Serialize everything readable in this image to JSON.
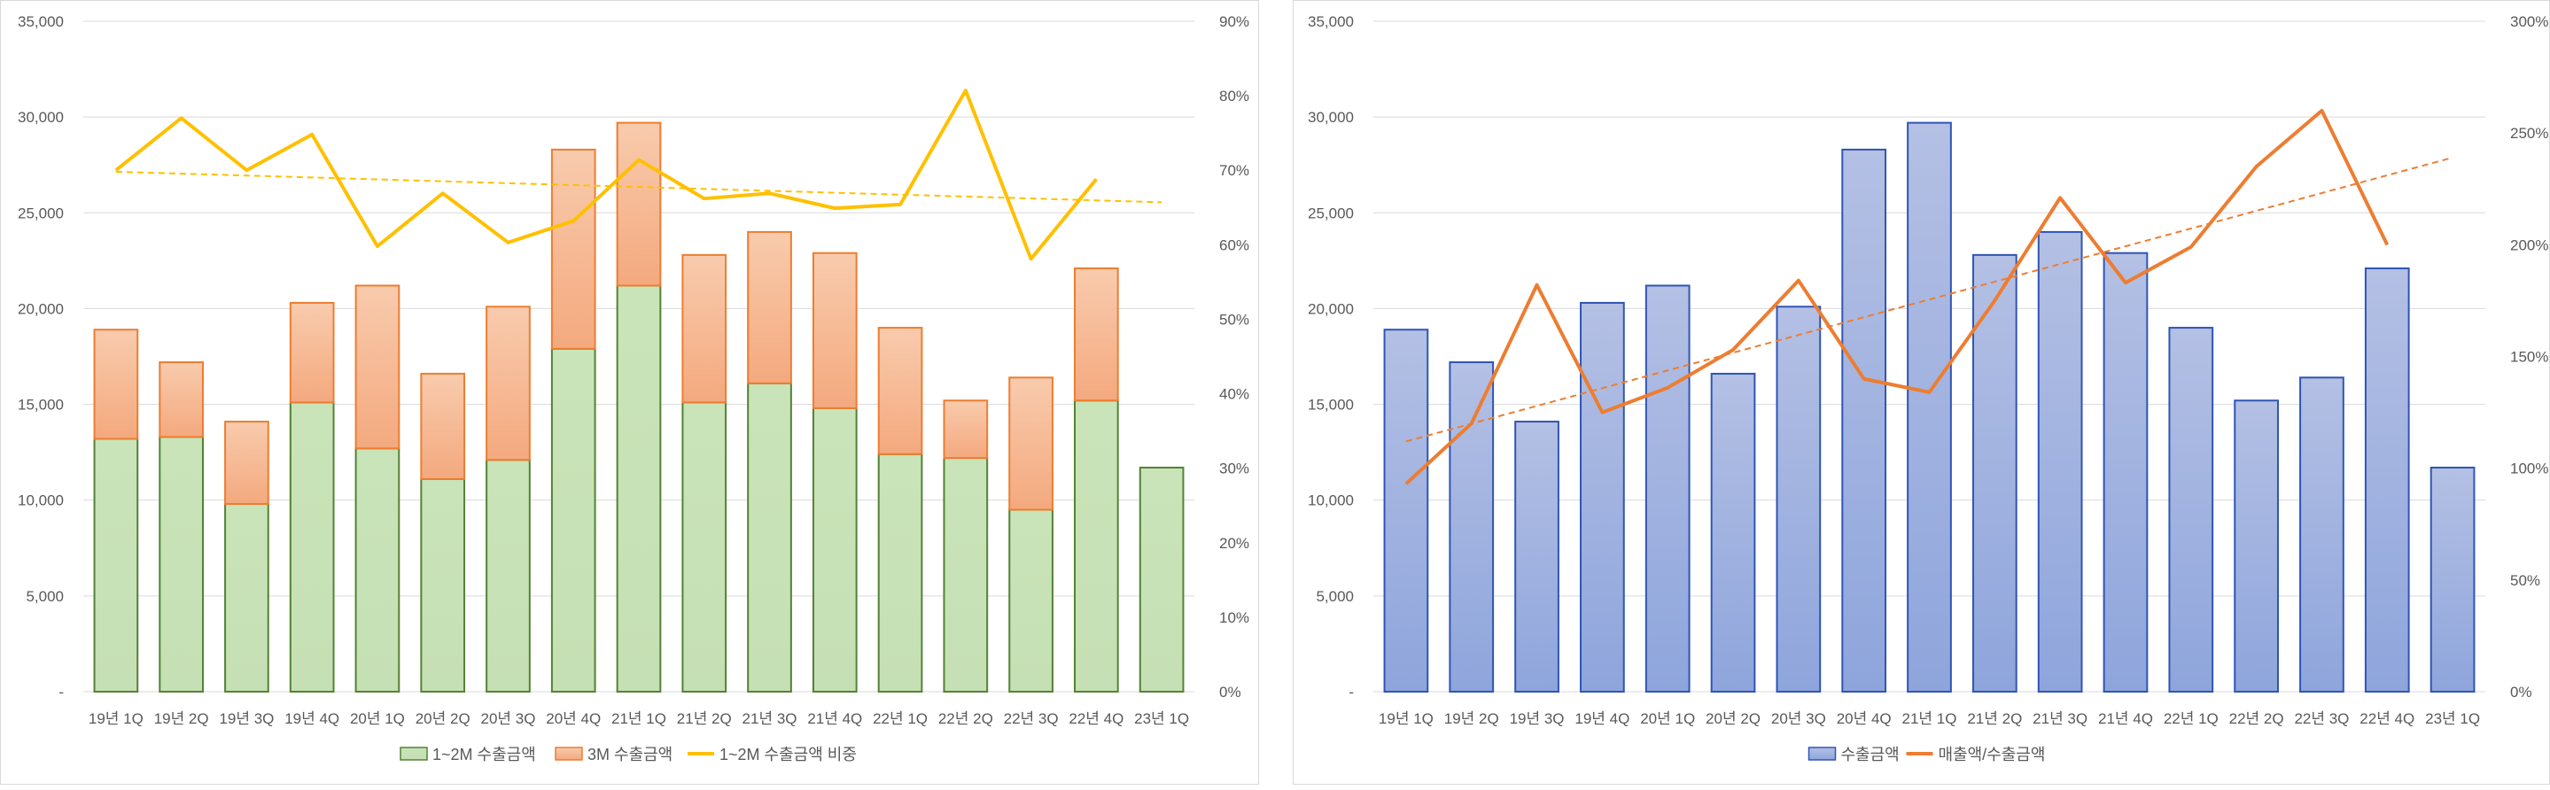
{
  "colors": {
    "green_fill_top": "#c9e4b8",
    "green_fill": "#c5e0b4",
    "green_stroke": "#548235",
    "orange_top": "#f8cbad",
    "orange_bottom": "#f4a97e",
    "orange_stroke": "#ed7d31",
    "gold_line": "#ffc000",
    "blue_top": "#b4c0e4",
    "blue_bottom": "#8ea5dc",
    "blue_stroke": "#2f55b4",
    "orange_line": "#ed7d31",
    "grid": "#d9d9d9",
    "axis_text": "#595959"
  },
  "chart_data": [
    {
      "type": "bar",
      "stacked": true,
      "categories": [
        "19년 1Q",
        "19년 2Q",
        "19년 3Q",
        "19년 4Q",
        "20년 1Q",
        "20년 2Q",
        "20년 3Q",
        "20년 4Q",
        "21년 1Q",
        "21년 2Q",
        "21년 3Q",
        "21년 4Q",
        "22년 1Q",
        "22년 2Q",
        "22년 3Q",
        "22년 4Q",
        "23년 1Q"
      ],
      "series": [
        {
          "name": "1~2M 수출금액",
          "kind": "bar",
          "axis": "left",
          "values": [
            13200,
            13300,
            9800,
            15100,
            12700,
            11100,
            12100,
            17900,
            21200,
            15100,
            16100,
            14800,
            12400,
            12200,
            9500,
            15200,
            11700
          ]
        },
        {
          "name": "3M 수출금액",
          "kind": "bar",
          "axis": "left",
          "values": [
            5700,
            3900,
            4300,
            5200,
            8500,
            5500,
            8000,
            10400,
            8500,
            7700,
            7900,
            8100,
            6600,
            3000,
            6900,
            6900,
            0
          ]
        },
        {
          "name": "1~2M 수출금액 비중",
          "kind": "line",
          "axis": "right",
          "values": [
            70,
            77,
            70,
            74.8,
            59.8,
            66.9,
            60.3,
            63.2,
            71.4,
            66.2,
            66.9,
            64.9,
            65.4,
            80.7,
            58.1,
            68.8,
            null
          ]
        }
      ],
      "trendline": {
        "series": "1~2M 수출금액 비중",
        "start": 69.8,
        "end": 65.7
      },
      "left_axis": {
        "min": 0,
        "max": 35000,
        "step": 5000,
        "tick_labels": [
          "-",
          "5,000",
          "10,000",
          "15,000",
          "20,000",
          "25,000",
          "30,000",
          "35,000"
        ]
      },
      "right_axis": {
        "min": 0,
        "max": 90,
        "step": 10,
        "tick_labels": [
          "0%",
          "10%",
          "20%",
          "30%",
          "40%",
          "50%",
          "60%",
          "70%",
          "80%",
          "90%"
        ]
      },
      "grid": true,
      "legend_position": "bottom"
    },
    {
      "type": "bar",
      "stacked": false,
      "categories": [
        "19년 1Q",
        "19년 2Q",
        "19년 3Q",
        "19년 4Q",
        "20년 1Q",
        "20년 2Q",
        "20년 3Q",
        "20년 4Q",
        "21년 1Q",
        "21년 2Q",
        "21년 3Q",
        "21년 4Q",
        "22년 1Q",
        "22년 2Q",
        "22년 3Q",
        "22년 4Q",
        "23년 1Q"
      ],
      "series": [
        {
          "name": "수출금액",
          "kind": "bar",
          "axis": "left",
          "values": [
            18900,
            17200,
            14100,
            20300,
            21200,
            16600,
            20100,
            28300,
            29700,
            22800,
            24000,
            22900,
            19000,
            15200,
            16400,
            22100,
            11700
          ]
        },
        {
          "name": "매출액/수출금액",
          "kind": "line",
          "axis": "right",
          "values": [
            93,
            120,
            182,
            125,
            136,
            153,
            184,
            140,
            134,
            175,
            221,
            183,
            199,
            235,
            260,
            200,
            null
          ]
        }
      ],
      "trendline": {
        "series": "매출액/수출금액",
        "start": 112,
        "end": 239
      },
      "left_axis": {
        "min": 0,
        "max": 35000,
        "step": 5000,
        "tick_labels": [
          "-",
          "5,000",
          "10,000",
          "15,000",
          "20,000",
          "25,000",
          "30,000",
          "35,000"
        ]
      },
      "right_axis": {
        "min": 0,
        "max": 300,
        "step": 50,
        "tick_labels": [
          "0%",
          "50%",
          "100%",
          "150%",
          "200%",
          "250%",
          "300%"
        ]
      },
      "grid": true,
      "legend_position": "bottom"
    }
  ]
}
